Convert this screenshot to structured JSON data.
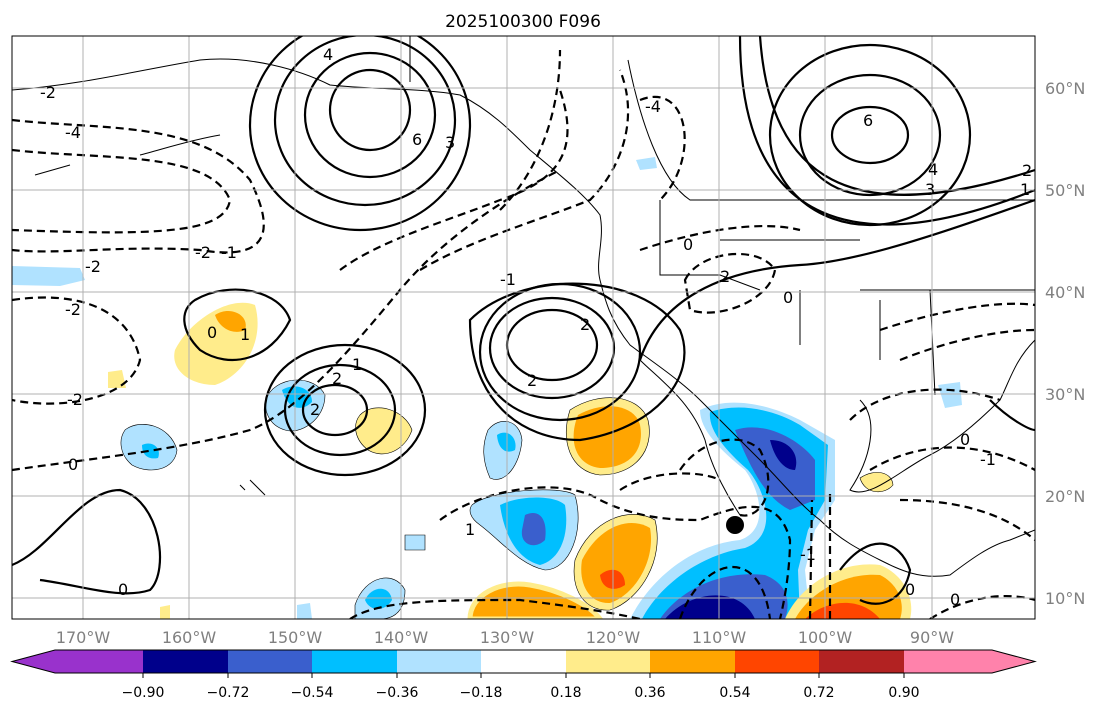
{
  "title": "2025100300 F096",
  "lon_labels": [
    "170°W",
    "160°W",
    "150°W",
    "140°W",
    "130°W",
    "120°W",
    "110°W",
    "100°W",
    "90°W"
  ],
  "lat_labels": [
    "60°N",
    "50°N",
    "40°N",
    "30°N",
    "20°N",
    "10°N"
  ],
  "colorbar": {
    "ticks": [
      "−0.90",
      "−0.72",
      "−0.54",
      "−0.36",
      "−0.18",
      "0.18",
      "0.36",
      "0.54",
      "0.72",
      "0.90"
    ],
    "colors": [
      "#9932cc",
      "#00008b",
      "#3a5fcd",
      "#00bfff",
      "#b0e2ff",
      "#ffffff",
      "#ffec8b",
      "#ffa500",
      "#ff4500",
      "#b22222",
      "#ff82ab"
    ]
  },
  "contour_labels": [
    "6",
    "4",
    "2",
    "1",
    "0",
    "-1",
    "-2",
    "-4",
    "3",
    "6",
    "2",
    "2",
    "0",
    "-2",
    "-2",
    "-2",
    "0",
    "1",
    "2",
    "2",
    "1",
    "-2",
    "0",
    "-1",
    "-4",
    "-1",
    "0",
    "0",
    "0",
    "-1",
    "4",
    "3",
    "2",
    "1",
    "0"
  ]
}
